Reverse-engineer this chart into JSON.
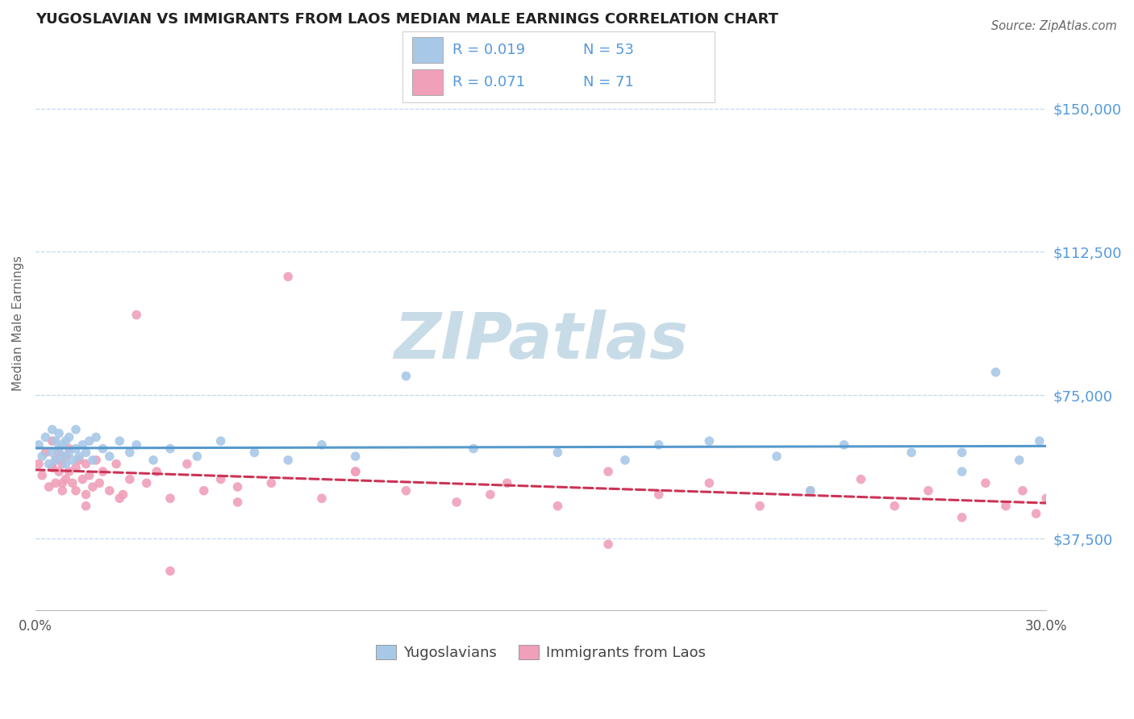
{
  "title": "YUGOSLAVIAN VS IMMIGRANTS FROM LAOS MEDIAN MALE EARNINGS CORRELATION CHART",
  "source": "Source: ZipAtlas.com",
  "ylabel": "Median Male Earnings",
  "xlim": [
    0.0,
    0.3
  ],
  "ylim": [
    18750,
    168750
  ],
  "yticks": [
    37500,
    75000,
    112500,
    150000
  ],
  "ytick_labels": [
    "$37,500",
    "$75,000",
    "$112,500",
    "$150,000"
  ],
  "xticks": [
    0.0,
    0.05,
    0.1,
    0.15,
    0.2,
    0.25,
    0.3
  ],
  "xtick_labels": [
    "0.0%",
    "",
    "",
    "",
    "",
    "",
    "30.0%"
  ],
  "blue_color": "#a8c8e8",
  "pink_color": "#f0a0b8",
  "blue_line_color": "#5599cc",
  "pink_line_color": "#cc3355",
  "axis_label_color": "#5599dd",
  "grid_color": "#c0d8ee",
  "watermark": "ZIPatlas",
  "watermark_color": "#c8dce8",
  "legend_label1": "Yugoslavians",
  "legend_label2": "Immigrants from Laos",
  "yug_x": [
    0.001,
    0.002,
    0.003,
    0.004,
    0.005,
    0.005,
    0.006,
    0.006,
    0.007,
    0.007,
    0.008,
    0.008,
    0.009,
    0.009,
    0.01,
    0.01,
    0.011,
    0.012,
    0.012,
    0.013,
    0.014,
    0.015,
    0.016,
    0.017,
    0.018,
    0.02,
    0.022,
    0.025,
    0.028,
    0.03,
    0.035,
    0.04,
    0.048,
    0.055,
    0.065,
    0.075,
    0.085,
    0.095,
    0.11,
    0.13,
    0.155,
    0.175,
    0.2,
    0.22,
    0.24,
    0.26,
    0.275,
    0.285,
    0.292,
    0.298,
    0.275,
    0.23,
    0.185
  ],
  "yug_y": [
    62000,
    59000,
    64000,
    57000,
    66000,
    60000,
    63000,
    58000,
    61000,
    65000,
    59000,
    62000,
    57000,
    63000,
    60000,
    64000,
    58000,
    61000,
    66000,
    59000,
    62000,
    60000,
    63000,
    58000,
    64000,
    61000,
    59000,
    63000,
    60000,
    62000,
    58000,
    61000,
    59000,
    63000,
    60000,
    58000,
    62000,
    59000,
    80000,
    61000,
    60000,
    58000,
    63000,
    59000,
    62000,
    60000,
    55000,
    81000,
    58000,
    63000,
    60000,
    50000,
    62000
  ],
  "laos_x": [
    0.001,
    0.002,
    0.003,
    0.004,
    0.005,
    0.005,
    0.006,
    0.006,
    0.007,
    0.007,
    0.008,
    0.008,
    0.009,
    0.009,
    0.01,
    0.01,
    0.011,
    0.012,
    0.012,
    0.013,
    0.014,
    0.015,
    0.015,
    0.016,
    0.017,
    0.018,
    0.019,
    0.02,
    0.022,
    0.024,
    0.026,
    0.028,
    0.03,
    0.033,
    0.036,
    0.04,
    0.045,
    0.05,
    0.055,
    0.06,
    0.07,
    0.075,
    0.085,
    0.095,
    0.11,
    0.125,
    0.14,
    0.155,
    0.17,
    0.185,
    0.2,
    0.215,
    0.23,
    0.245,
    0.255,
    0.265,
    0.275,
    0.282,
    0.288,
    0.293,
    0.297,
    0.3,
    0.17,
    0.095,
    0.135,
    0.06,
    0.04,
    0.025,
    0.015,
    0.008,
    0.005
  ],
  "laos_y": [
    57000,
    54000,
    60000,
    51000,
    63000,
    56000,
    58000,
    52000,
    60000,
    55000,
    50000,
    57000,
    53000,
    59000,
    55000,
    61000,
    52000,
    56000,
    50000,
    58000,
    53000,
    57000,
    49000,
    54000,
    51000,
    58000,
    52000,
    55000,
    50000,
    57000,
    49000,
    53000,
    96000,
    52000,
    55000,
    48000,
    57000,
    50000,
    53000,
    47000,
    52000,
    106000,
    48000,
    55000,
    50000,
    47000,
    52000,
    46000,
    55000,
    49000,
    52000,
    46000,
    50000,
    53000,
    46000,
    50000,
    43000,
    52000,
    46000,
    50000,
    44000,
    48000,
    36000,
    55000,
    49000,
    51000,
    29000,
    48000,
    46000,
    52000,
    56000
  ]
}
